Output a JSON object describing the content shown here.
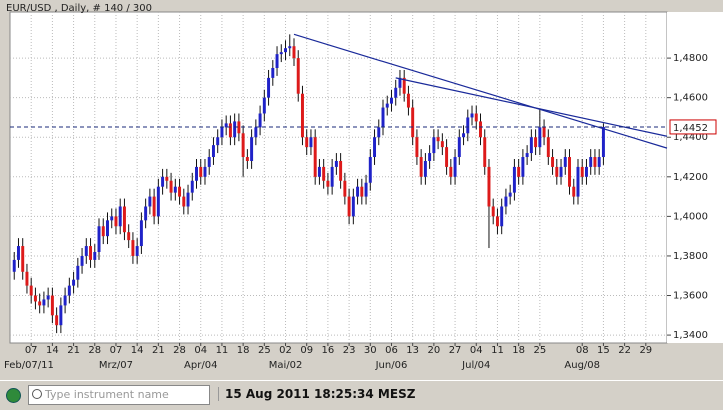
{
  "chart_data": {
    "type": "candlestick",
    "title": "EUR/USD , Daily, # 140 / 300",
    "up_color": "#1f22c8",
    "down_color": "#dd1a1a",
    "grid": true,
    "ylim": [
      1.336,
      1.5033
    ],
    "xlim": [
      -1,
      154
    ],
    "yticks": [
      {
        "value": 1.34,
        "label": "1,3400"
      },
      {
        "value": 1.36,
        "label": "1,3600"
      },
      {
        "value": 1.38,
        "label": "1,3800"
      },
      {
        "value": 1.4,
        "label": "1,4000"
      },
      {
        "value": 1.42,
        "label": "1,4200"
      },
      {
        "value": 1.44,
        "label": "1,4400"
      },
      {
        "value": 1.46,
        "label": "1,4600"
      },
      {
        "value": 1.48,
        "label": "1,4800"
      }
    ],
    "xticks": [
      {
        "value": 4,
        "label": "07"
      },
      {
        "value": 9,
        "label": "14"
      },
      {
        "value": 14,
        "label": "21"
      },
      {
        "value": 19,
        "label": "28"
      },
      {
        "value": 24,
        "label": "07"
      },
      {
        "value": 29,
        "label": "14"
      },
      {
        "value": 34,
        "label": "21"
      },
      {
        "value": 39,
        "label": "28"
      },
      {
        "value": 44,
        "label": "04"
      },
      {
        "value": 49,
        "label": "11"
      },
      {
        "value": 54,
        "label": "18"
      },
      {
        "value": 59,
        "label": "25"
      },
      {
        "value": 64,
        "label": "02"
      },
      {
        "value": 69,
        "label": "09"
      },
      {
        "value": 74,
        "label": "16"
      },
      {
        "value": 79,
        "label": "23"
      },
      {
        "value": 84,
        "label": "30"
      },
      {
        "value": 89,
        "label": "06"
      },
      {
        "value": 94,
        "label": "13"
      },
      {
        "value": 99,
        "label": "20"
      },
      {
        "value": 104,
        "label": "27"
      },
      {
        "value": 109,
        "label": "04"
      },
      {
        "value": 114,
        "label": "11"
      },
      {
        "value": 119,
        "label": "18"
      },
      {
        "value": 124,
        "label": "25"
      },
      {
        "value": 134,
        "label": "08"
      },
      {
        "value": 139,
        "label": "15"
      },
      {
        "value": 144,
        "label": "22"
      },
      {
        "value": 149,
        "label": "29"
      }
    ],
    "month_labels": [
      {
        "value": 4,
        "label": "Feb/07/11"
      },
      {
        "value": 24,
        "label": "Mrz/07"
      },
      {
        "value": 44,
        "label": "Apr/04"
      },
      {
        "value": 64,
        "label": "Mai/02"
      },
      {
        "value": 89,
        "label": "Jun/06"
      },
      {
        "value": 109,
        "label": "Jul/04"
      },
      {
        "value": 134,
        "label": "Aug/08"
      }
    ],
    "last_price": {
      "value": 1.4452,
      "label": "1,4452"
    },
    "trendlines": [
      {
        "x": [
          66,
          154
        ],
        "y": [
          1.492,
          1.4345
        ]
      },
      {
        "x": [
          90,
          154
        ],
        "y": [
          1.47,
          1.4405
        ]
      }
    ],
    "candles": [
      [
        1.372,
        1.382,
        1.368,
        1.378
      ],
      [
        1.378,
        1.389,
        1.374,
        1.385
      ],
      [
        1.385,
        1.389,
        1.368,
        1.372
      ],
      [
        1.372,
        1.376,
        1.361,
        1.365
      ],
      [
        1.365,
        1.369,
        1.356,
        1.36
      ],
      [
        1.36,
        1.364,
        1.353,
        1.357
      ],
      [
        1.357,
        1.361,
        1.351,
        1.355
      ],
      [
        1.355,
        1.362,
        1.351,
        1.358
      ],
      [
        1.358,
        1.364,
        1.354,
        1.36
      ],
      [
        1.36,
        1.364,
        1.346,
        1.35
      ],
      [
        1.35,
        1.354,
        1.341,
        1.345
      ],
      [
        1.345,
        1.359,
        1.341,
        1.355
      ],
      [
        1.355,
        1.364,
        1.351,
        1.36
      ],
      [
        1.36,
        1.369,
        1.356,
        1.365
      ],
      [
        1.365,
        1.372,
        1.361,
        1.368
      ],
      [
        1.368,
        1.379,
        1.364,
        1.375
      ],
      [
        1.375,
        1.384,
        1.371,
        1.38
      ],
      [
        1.38,
        1.389,
        1.376,
        1.385
      ],
      [
        1.385,
        1.389,
        1.374,
        1.378
      ],
      [
        1.378,
        1.386,
        1.374,
        1.382
      ],
      [
        1.382,
        1.399,
        1.378,
        1.395
      ],
      [
        1.395,
        1.399,
        1.386,
        1.39
      ],
      [
        1.39,
        1.402,
        1.386,
        1.398
      ],
      [
        1.398,
        1.404,
        1.394,
        1.4
      ],
      [
        1.4,
        1.404,
        1.391,
        1.395
      ],
      [
        1.395,
        1.409,
        1.391,
        1.405
      ],
      [
        1.405,
        1.409,
        1.388,
        1.392
      ],
      [
        1.392,
        1.396,
        1.384,
        1.388
      ],
      [
        1.388,
        1.392,
        1.376,
        1.38
      ],
      [
        1.38,
        1.389,
        1.376,
        1.385
      ],
      [
        1.385,
        1.402,
        1.381,
        1.398
      ],
      [
        1.398,
        1.409,
        1.394,
        1.405
      ],
      [
        1.405,
        1.414,
        1.401,
        1.41
      ],
      [
        1.41,
        1.414,
        1.396,
        1.4
      ],
      [
        1.4,
        1.419,
        1.396,
        1.415
      ],
      [
        1.415,
        1.424,
        1.411,
        1.42
      ],
      [
        1.42,
        1.424,
        1.414,
        1.418
      ],
      [
        1.418,
        1.422,
        1.408,
        1.412
      ],
      [
        1.412,
        1.419,
        1.408,
        1.415
      ],
      [
        1.415,
        1.419,
        1.406,
        1.41
      ],
      [
        1.41,
        1.414,
        1.401,
        1.405
      ],
      [
        1.405,
        1.416,
        1.401,
        1.412
      ],
      [
        1.412,
        1.422,
        1.408,
        1.418
      ],
      [
        1.418,
        1.429,
        1.414,
        1.425
      ],
      [
        1.425,
        1.429,
        1.416,
        1.42
      ],
      [
        1.42,
        1.429,
        1.416,
        1.425
      ],
      [
        1.425,
        1.434,
        1.421,
        1.43
      ],
      [
        1.43,
        1.44,
        1.426,
        1.436
      ],
      [
        1.436,
        1.444,
        1.432,
        1.44
      ],
      [
        1.44,
        1.449,
        1.436,
        1.445
      ],
      [
        1.445,
        1.451,
        1.441,
        1.447
      ],
      [
        1.447,
        1.451,
        1.436,
        1.44
      ],
      [
        1.44,
        1.452,
        1.436,
        1.448
      ],
      [
        1.448,
        1.452,
        1.438,
        1.442
      ],
      [
        1.442,
        1.446,
        1.42,
        1.43
      ],
      [
        1.43,
        1.434,
        1.424,
        1.428
      ],
      [
        1.428,
        1.444,
        1.424,
        1.44
      ],
      [
        1.44,
        1.449,
        1.436,
        1.445
      ],
      [
        1.445,
        1.456,
        1.441,
        1.452
      ],
      [
        1.452,
        1.464,
        1.448,
        1.46
      ],
      [
        1.46,
        1.474,
        1.456,
        1.47
      ],
      [
        1.47,
        1.479,
        1.466,
        1.475
      ],
      [
        1.475,
        1.486,
        1.471,
        1.482
      ],
      [
        1.482,
        1.487,
        1.478,
        1.483
      ],
      [
        1.483,
        1.489,
        1.479,
        1.485
      ],
      [
        1.485,
        1.492,
        1.481,
        1.486
      ],
      [
        1.486,
        1.49,
        1.476,
        1.48
      ],
      [
        1.48,
        1.484,
        1.458,
        1.462
      ],
      [
        1.462,
        1.466,
        1.436,
        1.44
      ],
      [
        1.44,
        1.444,
        1.431,
        1.435
      ],
      [
        1.435,
        1.444,
        1.431,
        1.44
      ],
      [
        1.44,
        1.444,
        1.416,
        1.42
      ],
      [
        1.42,
        1.429,
        1.416,
        1.425
      ],
      [
        1.425,
        1.429,
        1.414,
        1.418
      ],
      [
        1.418,
        1.422,
        1.411,
        1.415
      ],
      [
        1.415,
        1.429,
        1.411,
        1.425
      ],
      [
        1.425,
        1.432,
        1.421,
        1.428
      ],
      [
        1.428,
        1.432,
        1.414,
        1.418
      ],
      [
        1.418,
        1.422,
        1.406,
        1.41
      ],
      [
        1.41,
        1.414,
        1.396,
        1.4
      ],
      [
        1.4,
        1.414,
        1.396,
        1.41
      ],
      [
        1.41,
        1.419,
        1.406,
        1.415
      ],
      [
        1.415,
        1.419,
        1.406,
        1.41
      ],
      [
        1.41,
        1.421,
        1.406,
        1.417
      ],
      [
        1.417,
        1.434,
        1.413,
        1.43
      ],
      [
        1.43,
        1.444,
        1.426,
        1.44
      ],
      [
        1.44,
        1.449,
        1.436,
        1.445
      ],
      [
        1.445,
        1.459,
        1.441,
        1.455
      ],
      [
        1.455,
        1.461,
        1.451,
        1.457
      ],
      [
        1.457,
        1.464,
        1.453,
        1.46
      ],
      [
        1.46,
        1.469,
        1.456,
        1.465
      ],
      [
        1.465,
        1.474,
        1.461,
        1.47
      ],
      [
        1.47,
        1.474,
        1.458,
        1.462
      ],
      [
        1.462,
        1.466,
        1.451,
        1.455
      ],
      [
        1.455,
        1.459,
        1.436,
        1.44
      ],
      [
        1.44,
        1.444,
        1.426,
        1.43
      ],
      [
        1.43,
        1.434,
        1.416,
        1.42
      ],
      [
        1.42,
        1.432,
        1.416,
        1.428
      ],
      [
        1.428,
        1.436,
        1.424,
        1.432
      ],
      [
        1.432,
        1.444,
        1.428,
        1.44
      ],
      [
        1.44,
        1.444,
        1.434,
        1.438
      ],
      [
        1.438,
        1.442,
        1.431,
        1.435
      ],
      [
        1.435,
        1.439,
        1.421,
        1.425
      ],
      [
        1.425,
        1.429,
        1.416,
        1.42
      ],
      [
        1.42,
        1.434,
        1.416,
        1.43
      ],
      [
        1.43,
        1.444,
        1.426,
        1.44
      ],
      [
        1.44,
        1.446,
        1.436,
        1.442
      ],
      [
        1.442,
        1.454,
        1.438,
        1.45
      ],
      [
        1.45,
        1.456,
        1.446,
        1.452
      ],
      [
        1.452,
        1.456,
        1.444,
        1.448
      ],
      [
        1.448,
        1.452,
        1.436,
        1.44
      ],
      [
        1.44,
        1.444,
        1.421,
        1.425
      ],
      [
        1.425,
        1.429,
        1.384,
        1.405
      ],
      [
        1.405,
        1.409,
        1.396,
        1.4
      ],
      [
        1.4,
        1.404,
        1.391,
        1.395
      ],
      [
        1.395,
        1.409,
        1.391,
        1.405
      ],
      [
        1.405,
        1.414,
        1.401,
        1.41
      ],
      [
        1.41,
        1.416,
        1.406,
        1.412
      ],
      [
        1.412,
        1.429,
        1.408,
        1.425
      ],
      [
        1.425,
        1.429,
        1.416,
        1.42
      ],
      [
        1.42,
        1.434,
        1.416,
        1.43
      ],
      [
        1.43,
        1.436,
        1.426,
        1.432
      ],
      [
        1.432,
        1.444,
        1.428,
        1.44
      ],
      [
        1.44,
        1.444,
        1.431,
        1.435
      ],
      [
        1.435,
        1.454,
        1.431,
        1.445
      ],
      [
        1.445,
        1.449,
        1.436,
        1.44
      ],
      [
        1.44,
        1.444,
        1.426,
        1.43
      ],
      [
        1.43,
        1.434,
        1.421,
        1.425
      ],
      [
        1.425,
        1.429,
        1.416,
        1.42
      ],
      [
        1.42,
        1.429,
        1.416,
        1.425
      ],
      [
        1.425,
        1.434,
        1.421,
        1.43
      ],
      [
        1.43,
        1.434,
        1.411,
        1.415
      ],
      [
        1.415,
        1.419,
        1.406,
        1.41
      ],
      [
        1.41,
        1.429,
        1.406,
        1.425
      ],
      [
        1.425,
        1.429,
        1.416,
        1.42
      ],
      [
        1.42,
        1.429,
        1.416,
        1.425
      ],
      [
        1.425,
        1.434,
        1.421,
        1.43
      ],
      [
        1.43,
        1.434,
        1.421,
        1.425
      ],
      [
        1.425,
        1.434,
        1.421,
        1.43
      ],
      [
        1.43,
        1.447,
        1.426,
        1.4452
      ]
    ]
  },
  "status_bar": {
    "search_placeholder": "Type instrument name",
    "datetime": "15 Aug 2011 18:25:34 MESZ"
  }
}
